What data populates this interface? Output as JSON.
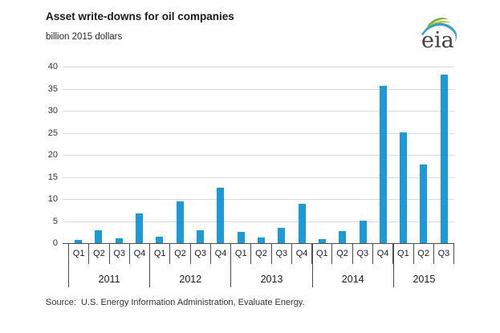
{
  "header": {
    "title": "Asset write-downs for oil companies",
    "subtitle": "billion 2015 dollars",
    "logo_text": "eia"
  },
  "source_note": "Source:  U.S. Energy Information Administration, Evaluate Energy.",
  "colors": {
    "bar": "#1b9ad6",
    "gridline": "#dadada",
    "axis": "#4d4d4d",
    "logo_text": "#3f3f3f",
    "logo_green": "#76b043",
    "logo_yellow": "#bcbe2a",
    "logo_blue": "#369fd0"
  },
  "chart_data": {
    "type": "bar",
    "title": "Asset write-downs for oil companies",
    "ylabel": "billion 2015 dollars",
    "xlabel": "",
    "ylim": [
      0,
      40
    ],
    "ytick_step": 5,
    "y_ticks": [
      0,
      5,
      10,
      15,
      20,
      25,
      30,
      35,
      40
    ],
    "grid": true,
    "legend": "none",
    "categories": [
      "Q1",
      "Q2",
      "Q3",
      "Q4",
      "Q1",
      "Q2",
      "Q3",
      "Q4",
      "Q1",
      "Q2",
      "Q3",
      "Q4",
      "Q1",
      "Q2",
      "Q3",
      "Q4",
      "Q1",
      "Q2",
      "Q3"
    ],
    "values": [
      0.8,
      3.0,
      1.1,
      6.7,
      1.4,
      9.5,
      2.9,
      12.6,
      2.6,
      1.3,
      3.4,
      9.0,
      1.0,
      2.8,
      5.1,
      35.7,
      25.1,
      17.8,
      38.2
    ],
    "years": [
      {
        "label": "2011",
        "quarters": 4
      },
      {
        "label": "2012",
        "quarters": 4
      },
      {
        "label": "2013",
        "quarters": 4
      },
      {
        "label": "2014",
        "quarters": 4
      },
      {
        "label": "2015",
        "quarters": 3
      }
    ]
  }
}
